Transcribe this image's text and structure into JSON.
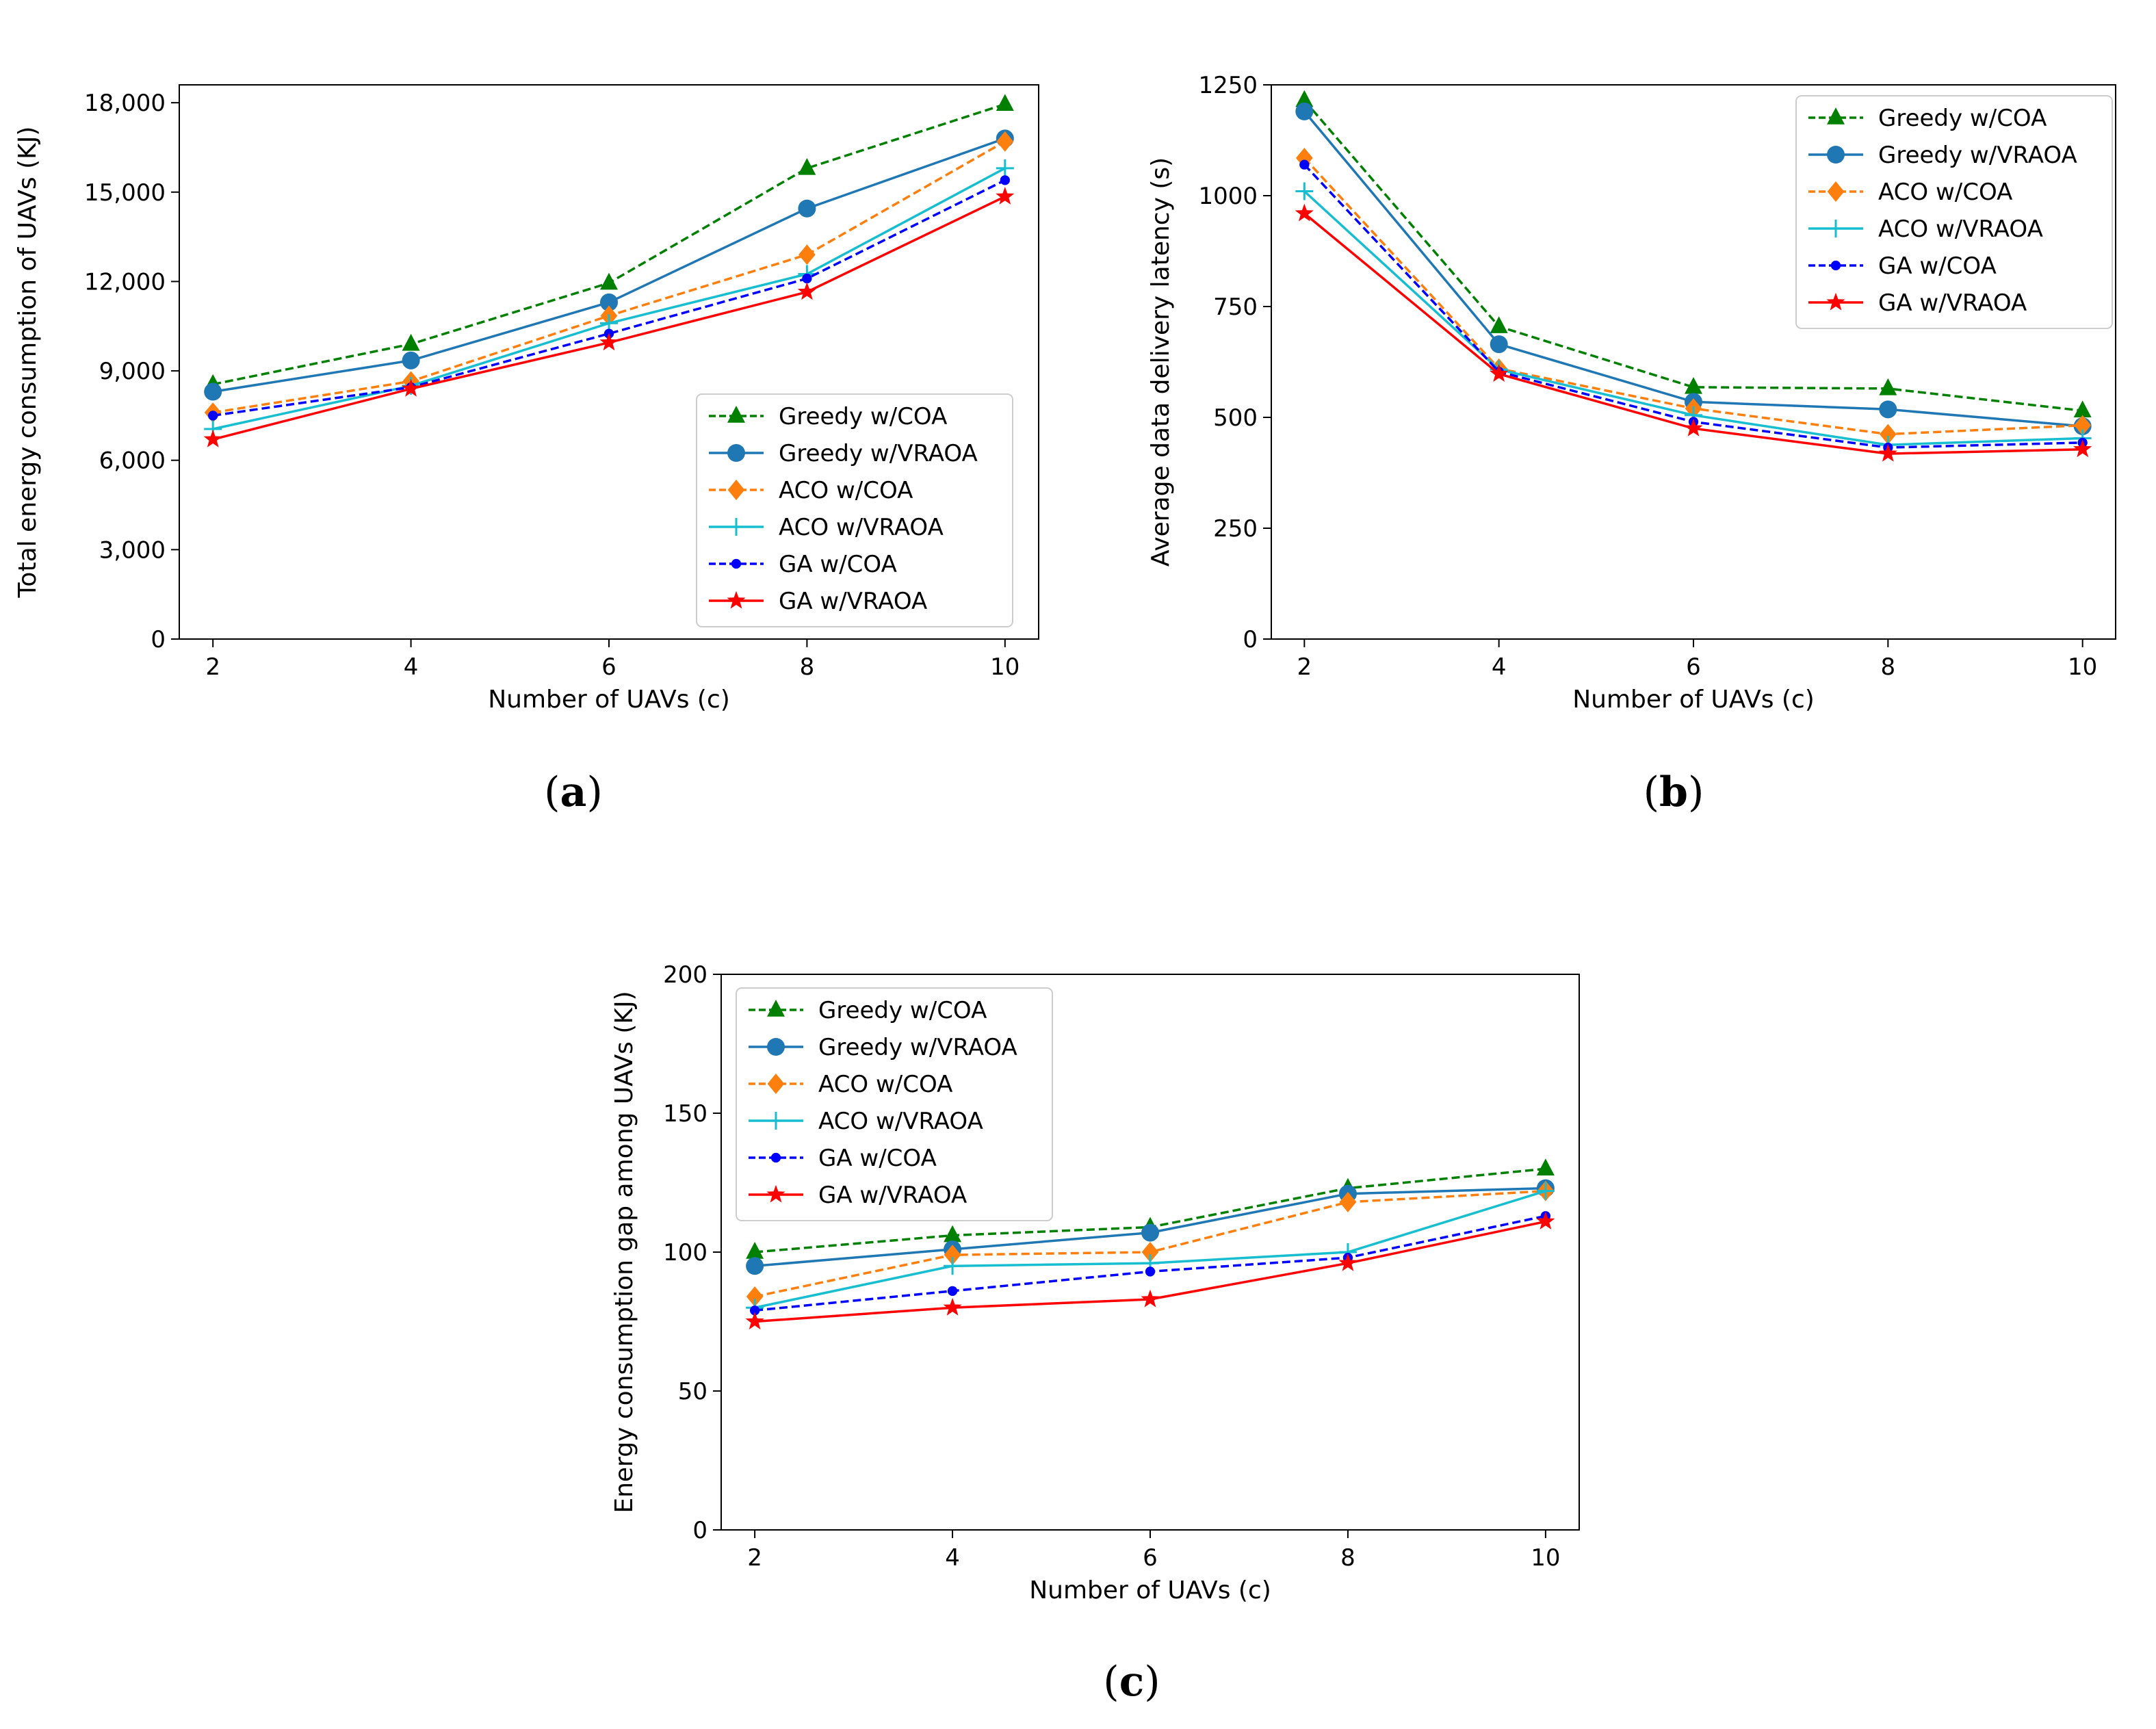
{
  "chart_data": [
    {
      "type": "line",
      "caption_letter": "a",
      "xlabel": "Number of UAVs (c)",
      "ylabel": "Total energy consumption of UAVs (KJ)",
      "x": [
        2,
        4,
        6,
        8,
        10
      ],
      "xticks": [
        "2",
        "4",
        "6",
        "8",
        "10"
      ],
      "ylim": [
        0,
        18600
      ],
      "yticks": [
        0,
        3000,
        6000,
        9000,
        12000,
        15000,
        18000
      ],
      "ytick_labels": [
        "0",
        "3,000",
        "6,000",
        "9,000",
        "12,000",
        "15,000",
        "18,000"
      ],
      "legend_position": "lower-right",
      "series": [
        {
          "name": "Greedy w/COA",
          "values": [
            8550,
            9900,
            11950,
            15800,
            17950
          ]
        },
        {
          "name": "Greedy w/VRAOA",
          "values": [
            8300,
            9350,
            11300,
            14450,
            16800
          ]
        },
        {
          "name": "ACO w/COA",
          "values": [
            7600,
            8650,
            10850,
            12900,
            16700
          ]
        },
        {
          "name": "ACO w/VRAOA",
          "values": [
            7050,
            8500,
            10600,
            12250,
            15800
          ]
        },
        {
          "name": "GA w/COA",
          "values": [
            7500,
            8450,
            10250,
            12100,
            15400
          ]
        },
        {
          "name": "GA w/VRAOA",
          "values": [
            6700,
            8400,
            9950,
            11650,
            14850
          ]
        }
      ]
    },
    {
      "type": "line",
      "caption_letter": "b",
      "xlabel": "Number of UAVs (c)",
      "ylabel": "Average data delivery latency (s)",
      "x": [
        2,
        4,
        6,
        8,
        10
      ],
      "xticks": [
        "2",
        "4",
        "6",
        "8",
        "10"
      ],
      "ylim": [
        0,
        1250
      ],
      "yticks": [
        0,
        250,
        500,
        750,
        1000,
        1250
      ],
      "ytick_labels": [
        "0",
        "250",
        "500",
        "750",
        "1000",
        "1250"
      ],
      "legend_position": "upper-right",
      "series": [
        {
          "name": "Greedy w/COA",
          "values": [
            1215,
            705,
            568,
            565,
            515
          ]
        },
        {
          "name": "Greedy w/VRAOA",
          "values": [
            1190,
            665,
            535,
            518,
            480
          ]
        },
        {
          "name": "ACO w/COA",
          "values": [
            1085,
            610,
            520,
            462,
            482
          ]
        },
        {
          "name": "ACO w/VRAOA",
          "values": [
            1010,
            608,
            505,
            438,
            453
          ]
        },
        {
          "name": "GA w/COA",
          "values": [
            1070,
            603,
            490,
            432,
            443
          ]
        },
        {
          "name": "GA w/VRAOA",
          "values": [
            960,
            598,
            475,
            418,
            428
          ]
        }
      ]
    },
    {
      "type": "line",
      "caption_letter": "c",
      "xlabel": "Number of UAVs (c)",
      "ylabel": "Energy consumption gap among UAVs (KJ)",
      "x": [
        2,
        4,
        6,
        8,
        10
      ],
      "xticks": [
        "2",
        "4",
        "6",
        "8",
        "10"
      ],
      "ylim": [
        0,
        200
      ],
      "yticks": [
        0,
        50,
        100,
        150,
        200
      ],
      "ytick_labels": [
        "0",
        "50",
        "100",
        "150",
        "200"
      ],
      "legend_position": "upper-left",
      "series": [
        {
          "name": "Greedy w/COA",
          "values": [
            100,
            106,
            109,
            123,
            130
          ]
        },
        {
          "name": "Greedy w/VRAOA",
          "values": [
            95,
            101,
            107,
            121,
            123
          ]
        },
        {
          "name": "ACO w/COA",
          "values": [
            84,
            99,
            100,
            118,
            122
          ]
        },
        {
          "name": "ACO w/VRAOA",
          "values": [
            80,
            95,
            96,
            100,
            122
          ]
        },
        {
          "name": "GA w/COA",
          "values": [
            79,
            86,
            93,
            98,
            113
          ]
        },
        {
          "name": "GA w/VRAOA",
          "values": [
            75,
            80,
            83,
            96,
            111
          ]
        }
      ]
    }
  ],
  "styles": [
    {
      "name": "Greedy w/COA",
      "color": "#008000",
      "dash": "12,6",
      "marker": "triangle"
    },
    {
      "name": "Greedy w/VRAOA",
      "color": "#1f77b4",
      "dash": "",
      "marker": "circle"
    },
    {
      "name": "ACO w/COA",
      "color": "#ff7f0e",
      "dash": "12,6",
      "marker": "diamond"
    },
    {
      "name": "ACO w/VRAOA",
      "color": "#17becf",
      "dash": "",
      "marker": "plus"
    },
    {
      "name": "GA w/COA",
      "color": "#0000ff",
      "dash": "12,6",
      "marker": "dot"
    },
    {
      "name": "GA w/VRAOA",
      "color": "#ff0000",
      "dash": "",
      "marker": "star"
    }
  ]
}
